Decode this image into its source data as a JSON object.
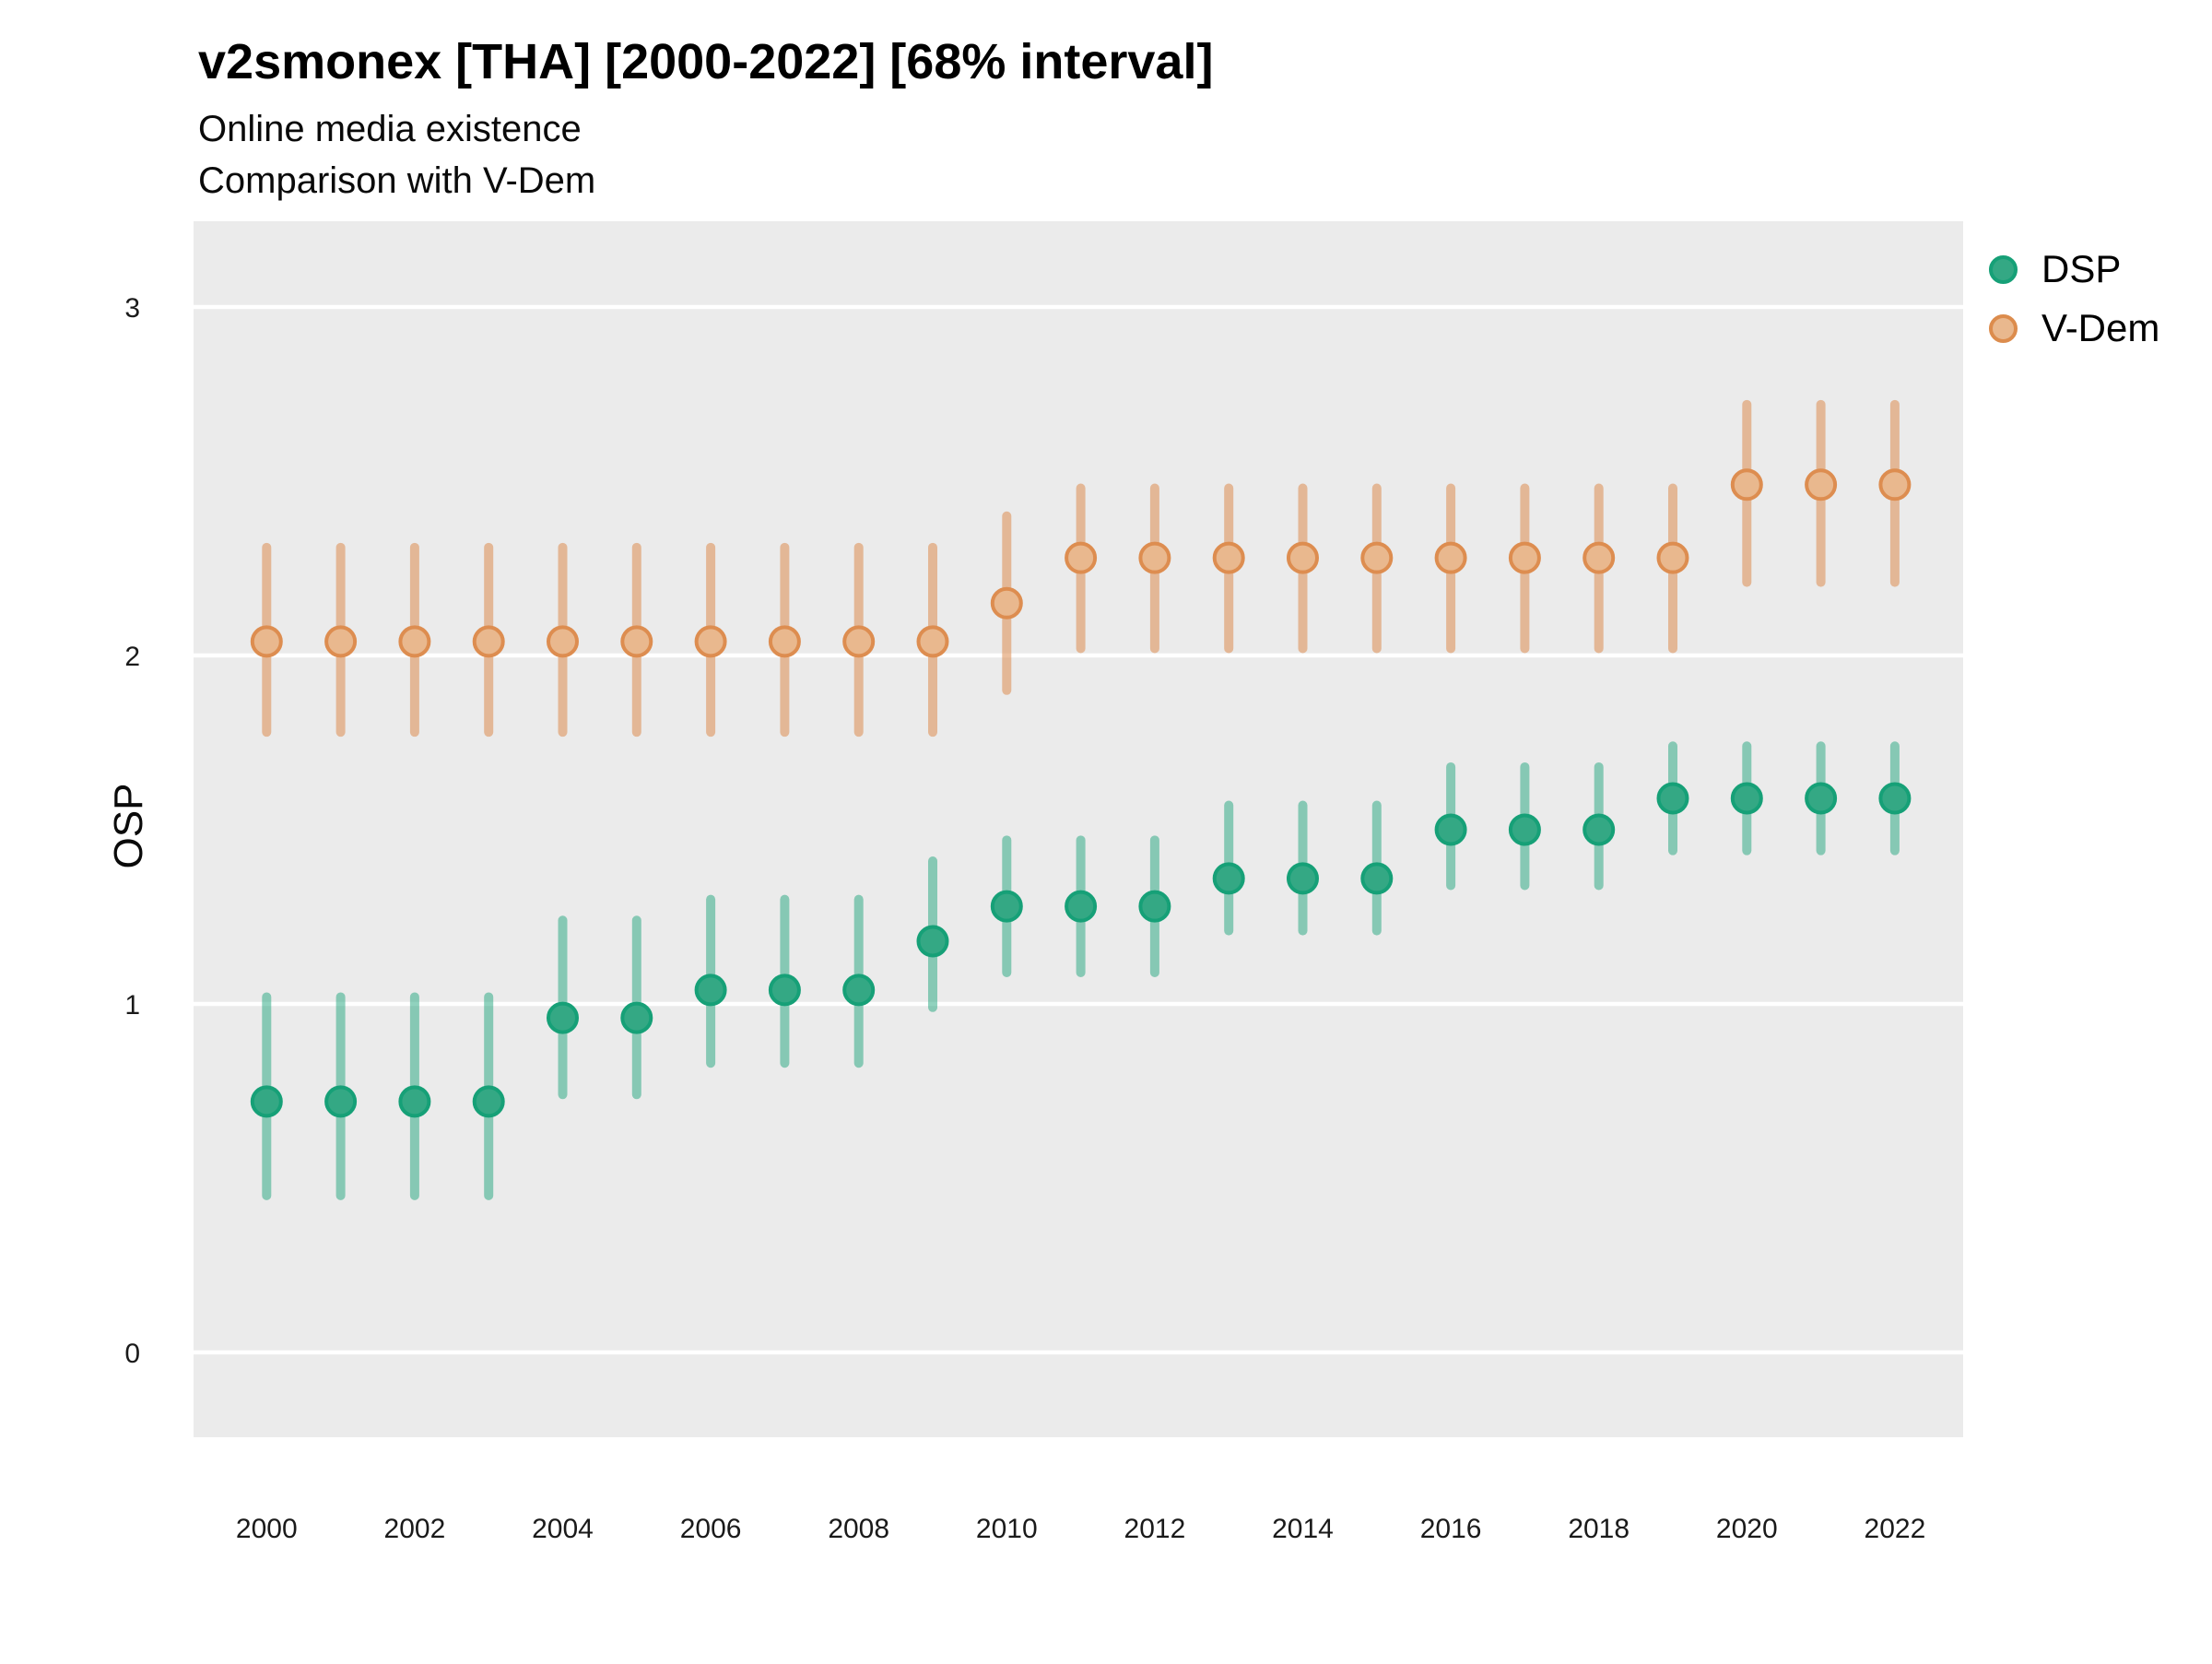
{
  "title": "v2smonex [THA] [2000-2022] [68% interval]",
  "subtitle_line1": "Online media existence",
  "subtitle_line2": "Comparison with V-Dem",
  "y_axis_title": "OSP",
  "legend": {
    "items": [
      {
        "label": "DSP",
        "color": "#16A077",
        "fill": "#34A884"
      },
      {
        "label": "V-Dem",
        "color": "#DC8C4D",
        "fill": "#E9B88E"
      }
    ]
  },
  "panel_colors": {
    "background": "#EBEBEB",
    "gridline": "#FFFFFF"
  },
  "chart_data": {
    "type": "scatter",
    "subtype": "pointrange",
    "title": "v2smonex [THA] [2000-2022] [68% interval]",
    "subtitle": [
      "Online media existence",
      "Comparison with V-Dem"
    ],
    "interval": "68%",
    "xlabel": "",
    "ylabel": "OSP",
    "x": [
      2000,
      2001,
      2002,
      2003,
      2004,
      2005,
      2006,
      2007,
      2008,
      2009,
      2010,
      2011,
      2012,
      2013,
      2014,
      2015,
      2016,
      2017,
      2018,
      2019,
      2020,
      2021,
      2022
    ],
    "x_tick_labels": [
      2000,
      2002,
      2004,
      2006,
      2008,
      2010,
      2012,
      2014,
      2016,
      2018,
      2020,
      2022
    ],
    "y_ticks": [
      0,
      1,
      2,
      3
    ],
    "ylim": [
      -0.25,
      3.25
    ],
    "grid": "major-horizontal only, white on gray panel",
    "legend_position": "right-top",
    "series": [
      {
        "name": "DSP",
        "color": "#16A077",
        "values": [
          0.72,
          0.72,
          0.72,
          0.72,
          0.96,
          0.96,
          1.04,
          1.04,
          1.04,
          1.18,
          1.28,
          1.28,
          1.28,
          1.36,
          1.36,
          1.36,
          1.5,
          1.5,
          1.5,
          1.59,
          1.59,
          1.59,
          1.59
        ],
        "lower": [
          0.45,
          0.45,
          0.45,
          0.45,
          0.74,
          0.74,
          0.83,
          0.83,
          0.83,
          0.99,
          1.09,
          1.09,
          1.09,
          1.21,
          1.21,
          1.21,
          1.34,
          1.34,
          1.34,
          1.44,
          1.44,
          1.44,
          1.44
        ],
        "upper": [
          1.02,
          1.02,
          1.02,
          1.02,
          1.24,
          1.24,
          1.3,
          1.3,
          1.3,
          1.41,
          1.47,
          1.47,
          1.47,
          1.57,
          1.57,
          1.57,
          1.68,
          1.68,
          1.68,
          1.74,
          1.74,
          1.74,
          1.74
        ]
      },
      {
        "name": "V-Dem",
        "color": "#DD8D50",
        "values": [
          2.04,
          2.04,
          2.04,
          2.04,
          2.04,
          2.04,
          2.04,
          2.04,
          2.04,
          2.04,
          2.15,
          2.28,
          2.28,
          2.28,
          2.28,
          2.28,
          2.28,
          2.28,
          2.28,
          2.28,
          2.49,
          2.49,
          2.49
        ],
        "lower": [
          1.78,
          1.78,
          1.78,
          1.78,
          1.78,
          1.78,
          1.78,
          1.78,
          1.78,
          1.78,
          1.9,
          2.02,
          2.02,
          2.02,
          2.02,
          2.02,
          2.02,
          2.02,
          2.02,
          2.02,
          2.21,
          2.21,
          2.21
        ],
        "upper": [
          2.31,
          2.31,
          2.31,
          2.31,
          2.31,
          2.31,
          2.31,
          2.31,
          2.31,
          2.31,
          2.4,
          2.48,
          2.48,
          2.48,
          2.48,
          2.48,
          2.48,
          2.48,
          2.48,
          2.48,
          2.72,
          2.72,
          2.72
        ]
      }
    ]
  }
}
